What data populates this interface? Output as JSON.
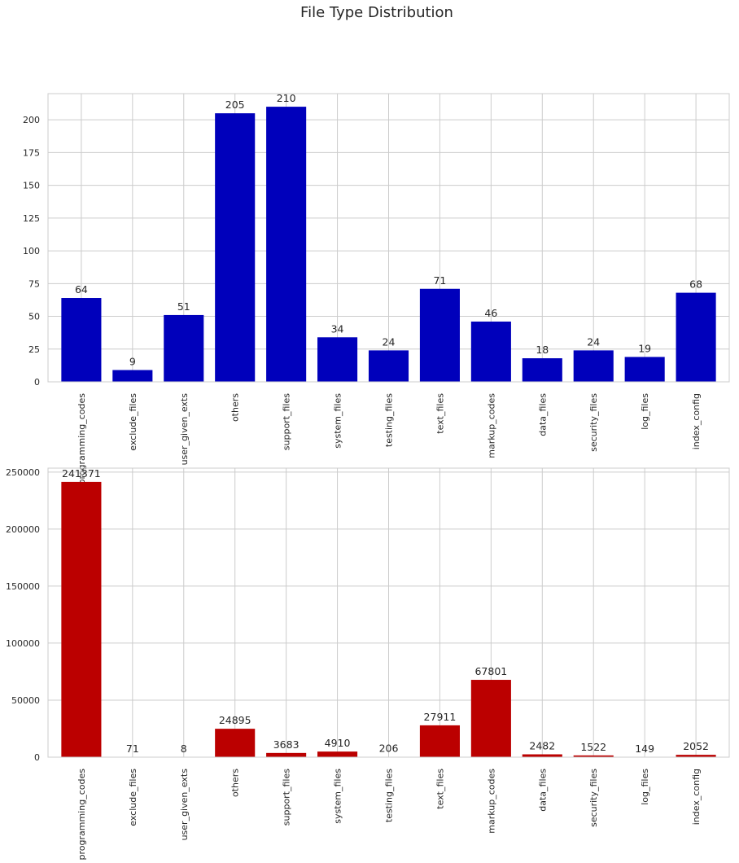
{
  "chart_data": [
    {
      "type": "bar",
      "title": "File Type Distribution",
      "categories": [
        "programming_codes",
        "exclude_files",
        "user_given_exts",
        "others",
        "support_files",
        "system_files",
        "testing_files",
        "text_files",
        "markup_codes",
        "data_files",
        "security_files",
        "log_files",
        "index_config"
      ],
      "values": [
        64,
        9,
        51,
        205,
        210,
        34,
        24,
        71,
        46,
        18,
        24,
        19,
        68
      ],
      "data_labels": [
        "64",
        "9",
        "51",
        "205",
        "210",
        "34",
        "24",
        "71",
        "46",
        "18",
        "24",
        "19",
        "68"
      ],
      "color": "#0000bb",
      "ylim": [
        0,
        220
      ],
      "yticks": [
        0,
        25,
        50,
        75,
        100,
        125,
        150,
        175,
        200
      ],
      "ytick_labels": [
        "0",
        "25",
        "50",
        "75",
        "100",
        "125",
        "150",
        "175",
        "200"
      ],
      "grid": true
    },
    {
      "type": "bar",
      "categories": [
        "programming_codes",
        "exclude_files",
        "user_given_exts",
        "others",
        "support_files",
        "system_files",
        "testing_files",
        "text_files",
        "markup_codes",
        "data_files",
        "security_files",
        "log_files",
        "index_config"
      ],
      "values": [
        241371,
        71,
        8,
        24895,
        3683,
        4910,
        206,
        27911,
        67801,
        2482,
        1522,
        149,
        2052
      ],
      "data_labels": [
        "241371",
        "71",
        "8",
        "24895",
        "3683",
        "4910",
        "206",
        "27911",
        "67801",
        "2482",
        "1522",
        "149",
        "2052"
      ],
      "color": "#bb0000",
      "ylim": [
        0,
        253440
      ],
      "yticks": [
        0,
        50000,
        100000,
        150000,
        200000,
        250000
      ],
      "ytick_labels": [
        "0",
        "50000",
        "100000",
        "150000",
        "200000",
        "250000"
      ],
      "grid": true
    }
  ]
}
